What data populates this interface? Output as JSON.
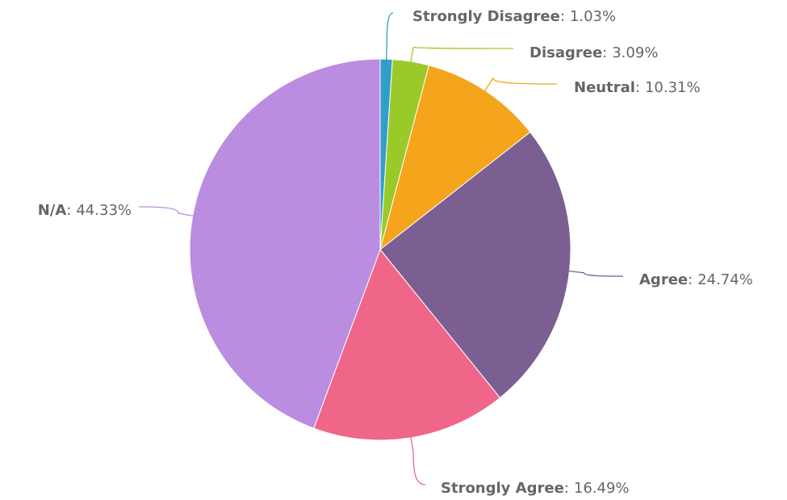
{
  "chart_data": {
    "type": "pie",
    "title": "",
    "slices": [
      {
        "label": "Strongly Disagree",
        "value": 1.03,
        "value_text": "1.03%",
        "color": "#2E9FC9"
      },
      {
        "label": "Disagree",
        "value": 3.09,
        "value_text": "3.09%",
        "color": "#9ACA2A"
      },
      {
        "label": "Neutral",
        "value": 10.31,
        "value_text": "10.31%",
        "color": "#F4A51C"
      },
      {
        "label": "Agree",
        "value": 24.74,
        "value_text": "24.74%",
        "color": "#7C5F92"
      },
      {
        "label": "Strongly Agree",
        "value": 16.49,
        "value_text": "16.49%",
        "color": "#F06688"
      },
      {
        "label": "N/A",
        "value": 44.33,
        "value_text": "44.33%",
        "color": "#BB8DE0"
      }
    ],
    "label_separator": ":",
    "legend": "none",
    "start_angle": "top",
    "direction": "clockwise"
  }
}
